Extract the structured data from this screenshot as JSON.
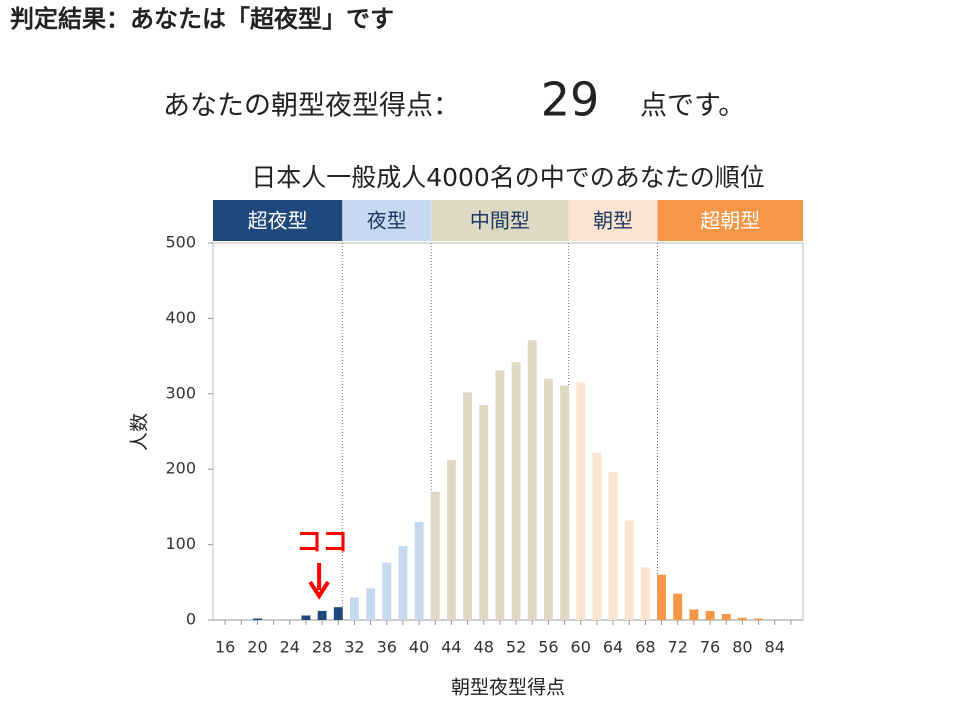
{
  "header": {
    "title": "判定結果：あなたは「超夜型」です",
    "score_prefix": "あなたの朝型夜型得点：",
    "score": 29,
    "score_suffix": "点です。"
  },
  "chart_data": {
    "type": "bar",
    "title": "日本人一般成人4000名の中でのあなたの順位",
    "x_label": "朝型夜型得点",
    "y_label": "人数",
    "x": [
      16,
      18,
      20,
      22,
      24,
      26,
      28,
      30,
      32,
      34,
      36,
      38,
      40,
      42,
      44,
      46,
      48,
      50,
      52,
      54,
      56,
      58,
      60,
      62,
      64,
      66,
      68,
      70,
      72,
      74,
      76,
      78,
      80,
      82,
      84,
      86
    ],
    "values": [
      0,
      0,
      2,
      0,
      0,
      6,
      12,
      17,
      30,
      42,
      76,
      98,
      130,
      170,
      212,
      302,
      285,
      331,
      342,
      371,
      320,
      311,
      315,
      222,
      196,
      132,
      70,
      60,
      35,
      14,
      12,
      8,
      3,
      2,
      0,
      0
    ],
    "xlim": [
      14.5,
      87.5
    ],
    "xticks": [
      16,
      20,
      24,
      28,
      32,
      36,
      40,
      44,
      48,
      52,
      56,
      60,
      64,
      68,
      72,
      76,
      80,
      84
    ],
    "ylim": [
      0,
      500
    ],
    "yticks": [
      0,
      100,
      200,
      300,
      400,
      500
    ],
    "bands": [
      {
        "label": "超夜型",
        "range": [
          16,
          30
        ],
        "color": "#1f497d",
        "text_color": "#ffffff"
      },
      {
        "label": "夜型",
        "range": [
          31,
          41
        ],
        "color": "#c6d9f1",
        "text_color": "#1f3864"
      },
      {
        "label": "中間型",
        "range": [
          42,
          58
        ],
        "color": "#ddd9c3",
        "text_color": "#1f3864"
      },
      {
        "label": "朝型",
        "range": [
          59,
          69
        ],
        "color": "#fde4d0",
        "text_color": "#1f3864"
      },
      {
        "label": "超朝型",
        "range": [
          70,
          86
        ],
        "color": "#f79646",
        "text_color": "#ffffff"
      }
    ],
    "annotation": {
      "text": "ココ",
      "x": 28,
      "color": "#ff0000"
    }
  }
}
